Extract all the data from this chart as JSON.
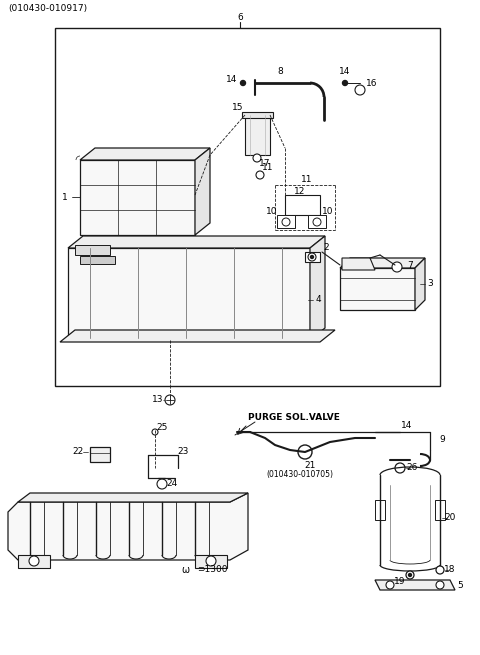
{
  "bg_color": "#ffffff",
  "line_color": "#1a1a1a",
  "text_color": "#000000",
  "fig_width": 4.8,
  "fig_height": 6.55,
  "dpi": 100
}
